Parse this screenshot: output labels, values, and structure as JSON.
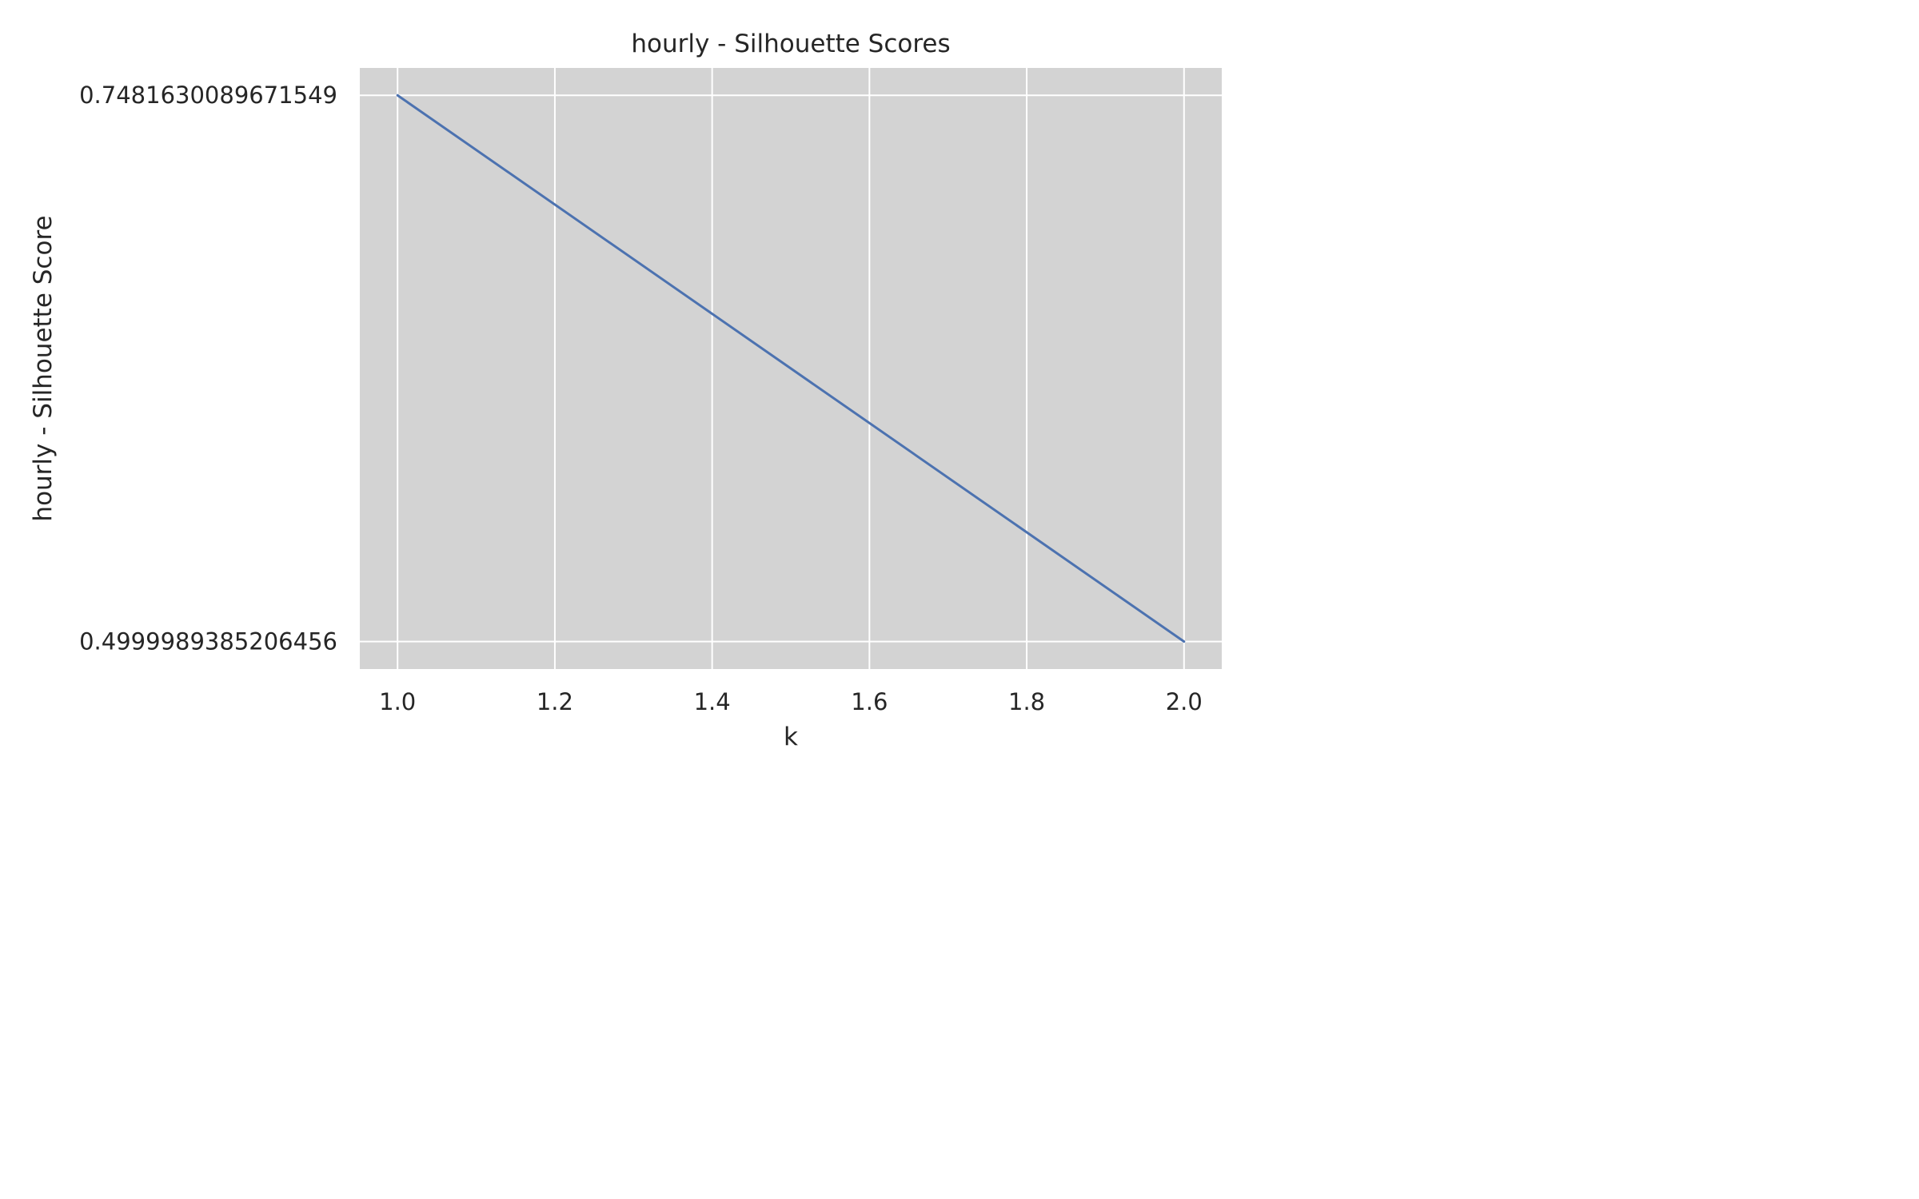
{
  "chart_data": {
    "type": "line",
    "title": "hourly - Silhouette Scores",
    "xlabel": "k",
    "ylabel": "hourly - Silhouette Score",
    "xlim": [
      0.952,
      2.048
    ],
    "ylim": [
      0.4875,
      0.7606
    ],
    "x_ticks": [
      "1.0",
      "1.2",
      "1.4",
      "1.6",
      "1.8",
      "2.0"
    ],
    "x_tick_values": [
      1.0,
      1.2,
      1.4,
      1.6,
      1.8,
      2.0
    ],
    "y_ticks": [
      "0.7481630089671549",
      "0.4999989385206456"
    ],
    "y_tick_values": [
      0.7481630089671549,
      0.4999989385206456
    ],
    "grid": true,
    "background_color": "#d3d3d3",
    "grid_color": "#ffffff",
    "series": [
      {
        "color": "#4c72b0",
        "x": [
          1,
          2
        ],
        "y": [
          0.7481630089671549,
          0.4999989385206456
        ]
      }
    ]
  }
}
